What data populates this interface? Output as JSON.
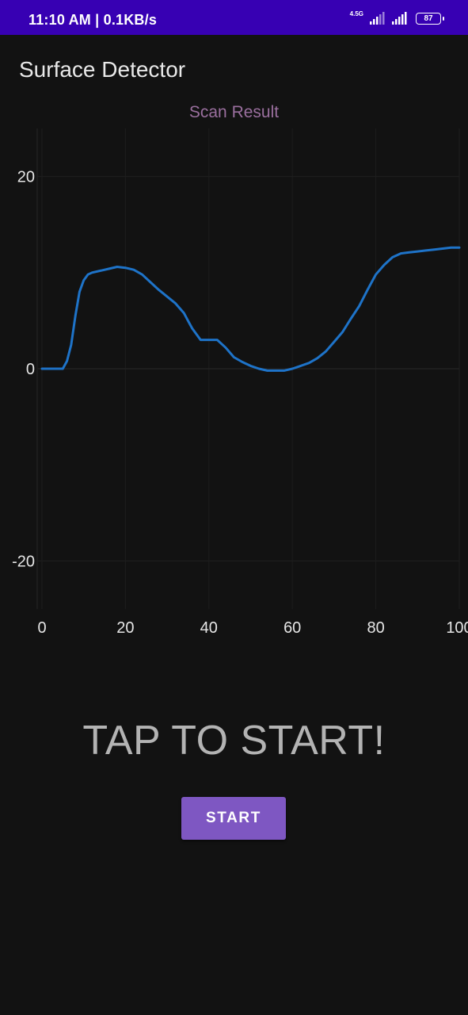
{
  "status_bar": {
    "time_speed": "11:10 AM | 0.1KB/s",
    "network_type": "4.5G",
    "battery_level": "87",
    "icons": [
      "signal-icon",
      "signal-icon",
      "battery-icon"
    ]
  },
  "app": {
    "title": "Surface Detector"
  },
  "chart_data": {
    "type": "line",
    "title": "Scan Result",
    "xlabel": "",
    "ylabel": "",
    "xlim": [
      0,
      100
    ],
    "ylim": [
      -25,
      25
    ],
    "x_ticks": [
      "0",
      "20",
      "40",
      "60",
      "80",
      "100"
    ],
    "y_ticks": [
      "20",
      "0",
      "-20"
    ],
    "grid": true,
    "series": [
      {
        "color": "#1e73c8",
        "x": [
          0,
          5,
          6,
          7,
          8,
          9,
          10,
          11,
          12,
          14,
          16,
          18,
          20,
          22,
          24,
          26,
          28,
          30,
          32,
          34,
          35,
          36,
          38,
          40,
          42,
          44,
          46,
          48,
          50,
          52,
          54,
          56,
          58,
          60,
          62,
          64,
          66,
          68,
          70,
          72,
          74,
          76,
          78,
          80,
          82,
          84,
          86,
          88,
          90,
          92,
          94,
          96,
          98,
          100
        ],
        "y": [
          0,
          0,
          0.8,
          2.5,
          5.5,
          8,
          9.2,
          9.8,
          10,
          10.2,
          10.4,
          10.6,
          10.5,
          10.3,
          9.8,
          9,
          8.2,
          7.5,
          6.8,
          5.8,
          5,
          4.2,
          3,
          3,
          3,
          2.2,
          1.2,
          0.7,
          0.3,
          0,
          -0.2,
          -0.2,
          -0.2,
          0,
          0.3,
          0.6,
          1.1,
          1.8,
          2.8,
          3.8,
          5.2,
          6.5,
          8.2,
          9.8,
          10.8,
          11.6,
          12,
          12.1,
          12.2,
          12.3,
          12.4,
          12.5,
          12.6,
          12.6
        ]
      }
    ]
  },
  "main": {
    "prompt": "TAP TO START!",
    "start_label": "START"
  },
  "colors": {
    "status_bar": "#3700b3",
    "background": "#121212",
    "accent": "#7e57c2",
    "line": "#1e73c8"
  }
}
